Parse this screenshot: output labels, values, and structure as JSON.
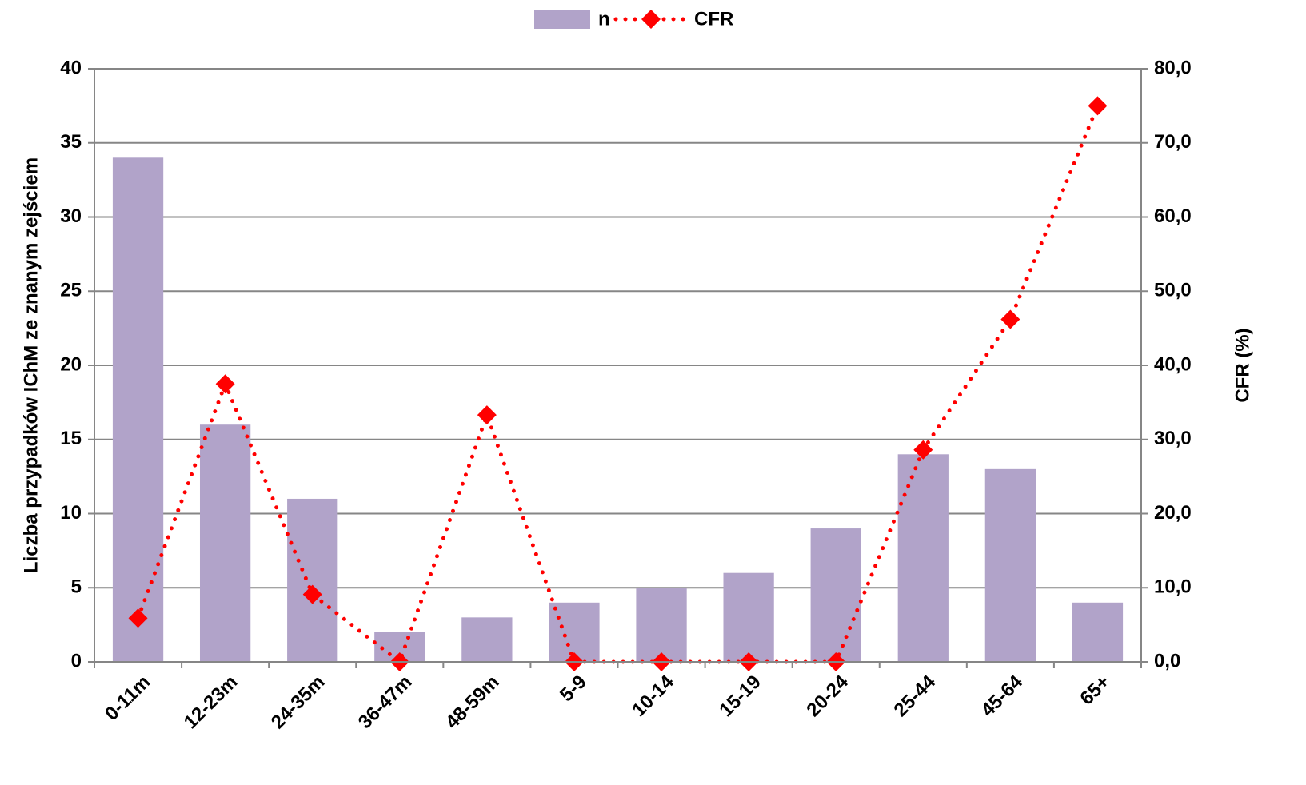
{
  "chart_data": {
    "type": "bar-line",
    "categories": [
      "0-11m",
      "12-23m",
      "24-35m",
      "36-47m",
      "48-59m",
      "5-9",
      "10-14",
      "15-19",
      "20-24",
      "25-44",
      "45-64",
      "65+"
    ],
    "series": [
      {
        "name": "n",
        "color": "#b1a3c9",
        "type": "bar",
        "values": [
          34,
          16,
          11,
          2,
          3,
          4,
          5,
          6,
          9,
          14,
          13,
          4
        ]
      },
      {
        "name": "CFR",
        "color": "#ff0000",
        "type": "line",
        "axis": "y2",
        "values": [
          5.9,
          37.5,
          9.1,
          0,
          33.3,
          0,
          0,
          0,
          0,
          28.6,
          46.2,
          75.0
        ]
      }
    ],
    "ylabel": "Liczba przypadków IChM ze znanym zejściem",
    "y2label": "CFR (%)",
    "ylim": [
      0,
      40
    ],
    "yticks": [
      0,
      5,
      10,
      15,
      20,
      25,
      30,
      35,
      40
    ],
    "y2lim": [
      0,
      80
    ],
    "y2ticks": [
      {
        "value": 0,
        "label": "0,0"
      },
      {
        "value": 10,
        "label": "10,0"
      },
      {
        "value": 20,
        "label": "20,0"
      },
      {
        "value": 30,
        "label": "30,0"
      },
      {
        "value": 40,
        "label": "40,0"
      },
      {
        "value": 50,
        "label": "50,0"
      },
      {
        "value": 60,
        "label": "60,0"
      },
      {
        "value": 70,
        "label": "70,0"
      },
      {
        "value": 80,
        "label": "80,0"
      }
    ],
    "grid": true,
    "legend": "top"
  }
}
